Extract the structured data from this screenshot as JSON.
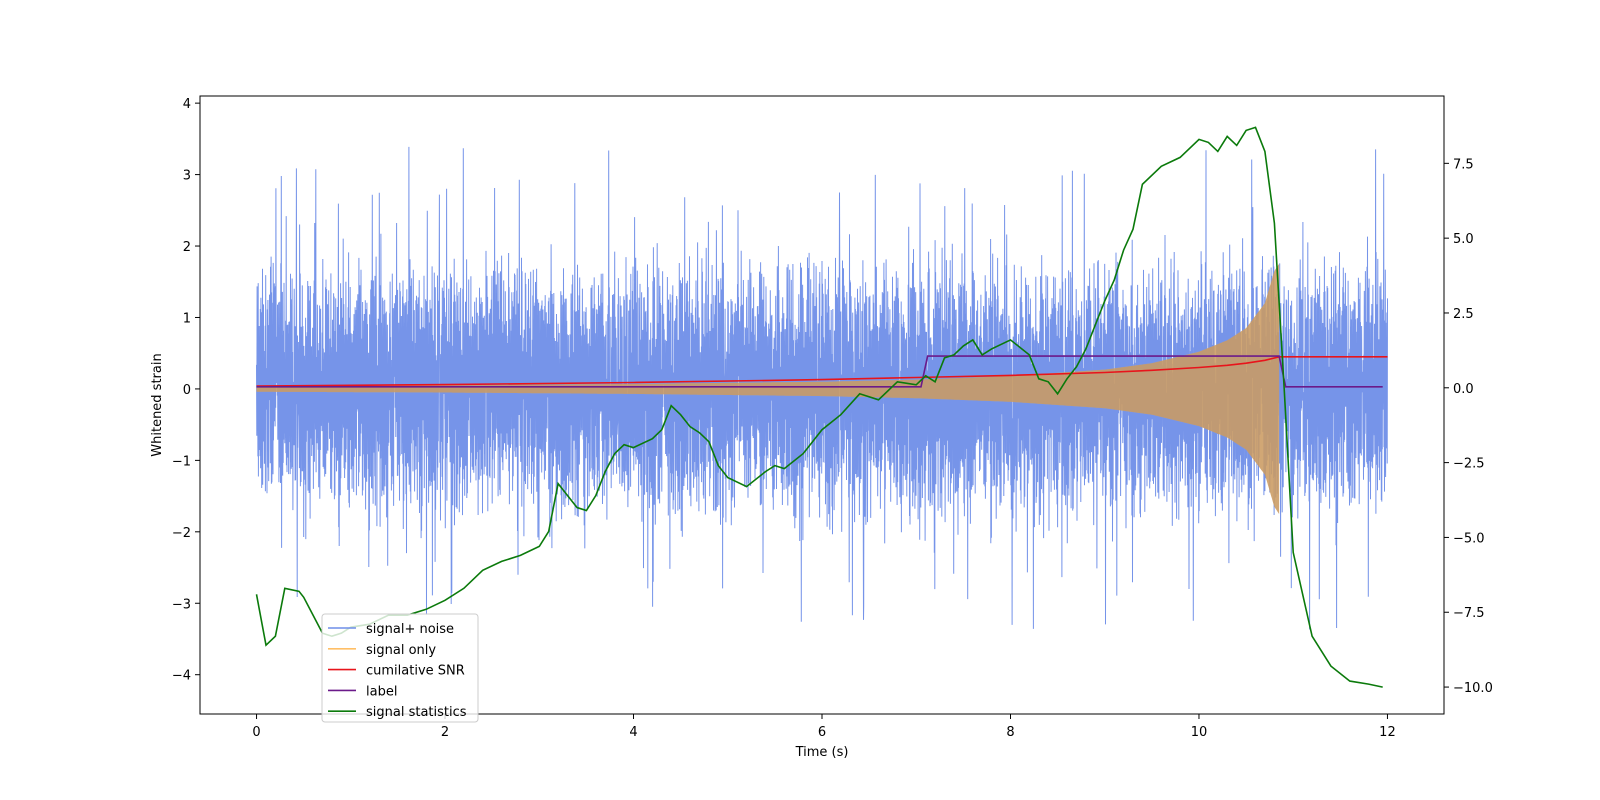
{
  "chart_data": {
    "type": "line",
    "xlabel": "Time (s)",
    "ylabel": "Whitened strain",
    "xlim": [
      -0.6,
      12.6
    ],
    "ylim": [
      -4.55,
      4.1
    ],
    "y2lim": [
      -10.9,
      9.75
    ],
    "x_ticks": [
      0,
      2,
      4,
      6,
      8,
      10,
      12
    ],
    "x_tick_labels": [
      "0",
      "2",
      "4",
      "6",
      "8",
      "10",
      "12"
    ],
    "y_ticks": [
      -4,
      -3,
      -2,
      -1,
      0,
      1,
      2,
      3,
      4
    ],
    "y_tick_labels": [
      "−4",
      "−3",
      "−2",
      "−1",
      "0",
      "1",
      "2",
      "3",
      "4"
    ],
    "y2_ticks": [
      -10,
      -7.5,
      -5,
      -2.5,
      0,
      2.5,
      5,
      7.5
    ],
    "y2_tick_labels": [
      "−10.0",
      "−7.5",
      "−5.0",
      "−2.5",
      "0.0",
      "2.5",
      "5.0",
      "7.5"
    ],
    "grid": false,
    "legend_position": "lower-left",
    "series": [
      {
        "name": "signal+ noise",
        "axis": "left",
        "color": "#6f8ee8",
        "style": "noise",
        "t_range": [
          0,
          12
        ],
        "typical_amplitude": 1.5,
        "peak_max": 3.7,
        "peak_min": -4.15
      },
      {
        "name": "signal only",
        "axis": "left",
        "color": "#ffbf66",
        "style": "chirp-envelope",
        "t_range": [
          0,
          10.85
        ],
        "envelope_t": [
          0,
          2,
          4,
          6,
          7,
          8,
          9,
          9.5,
          10,
          10.3,
          10.5,
          10.7,
          10.8,
          10.85
        ],
        "envelope_amp": [
          0.04,
          0.05,
          0.07,
          0.1,
          0.13,
          0.18,
          0.27,
          0.36,
          0.52,
          0.68,
          0.85,
          1.2,
          1.65,
          1.75
        ]
      },
      {
        "name": "cumilative SNR",
        "axis": "left",
        "color": "#e8141b",
        "style": "line",
        "x": [
          0,
          2,
          4,
          6,
          7,
          8,
          9,
          9.5,
          10,
          10.3,
          10.5,
          10.7,
          10.85,
          11,
          12
        ],
        "y": [
          0.04,
          0.06,
          0.09,
          0.13,
          0.16,
          0.19,
          0.23,
          0.26,
          0.3,
          0.33,
          0.36,
          0.4,
          0.45,
          0.45,
          0.45
        ]
      },
      {
        "name": "label",
        "axis": "left",
        "color": "#6b1a8a",
        "style": "line",
        "x": [
          0,
          7.05,
          7.12,
          10.85,
          10.92,
          11.95
        ],
        "y": [
          0.03,
          0.03,
          0.46,
          0.46,
          0.03,
          0.03
        ]
      },
      {
        "name": "signal statistics",
        "axis": "right",
        "color": "#0b7a0b",
        "style": "line",
        "x": [
          0,
          0.1,
          0.2,
          0.3,
          0.45,
          0.5,
          0.6,
          0.7,
          0.8,
          0.9,
          1.0,
          1.2,
          1.4,
          1.6,
          1.8,
          2.0,
          2.2,
          2.4,
          2.6,
          2.8,
          3.0,
          3.1,
          3.2,
          3.3,
          3.4,
          3.5,
          3.6,
          3.7,
          3.8,
          3.9,
          4.0,
          4.2,
          4.3,
          4.4,
          4.5,
          4.6,
          4.7,
          4.8,
          4.9,
          5.0,
          5.2,
          5.4,
          5.5,
          5.6,
          5.8,
          6.0,
          6.2,
          6.4,
          6.6,
          6.8,
          7.0,
          7.1,
          7.2,
          7.3,
          7.4,
          7.5,
          7.6,
          7.7,
          7.8,
          8.0,
          8.2,
          8.3,
          8.4,
          8.5,
          8.6,
          8.7,
          8.8,
          9.0,
          9.1,
          9.2,
          9.3,
          9.4,
          9.6,
          9.8,
          10.0,
          10.1,
          10.2,
          10.3,
          10.4,
          10.5,
          10.6,
          10.7,
          10.8,
          10.9,
          11.0,
          11.2,
          11.4,
          11.6,
          11.8,
          11.95
        ],
        "y": [
          -6.9,
          -8.6,
          -8.3,
          -6.7,
          -6.8,
          -7.0,
          -7.6,
          -8.2,
          -8.3,
          -8.2,
          -8.0,
          -7.9,
          -7.6,
          -7.6,
          -7.4,
          -7.1,
          -6.7,
          -6.1,
          -5.8,
          -5.6,
          -5.3,
          -4.8,
          -3.2,
          -3.6,
          -4.0,
          -4.1,
          -3.6,
          -2.8,
          -2.2,
          -1.9,
          -2.0,
          -1.7,
          -1.4,
          -0.6,
          -0.9,
          -1.3,
          -1.5,
          -1.8,
          -2.6,
          -3.0,
          -3.3,
          -2.8,
          -2.6,
          -2.7,
          -2.2,
          -1.4,
          -0.9,
          -0.2,
          -0.4,
          0.2,
          0.1,
          0.4,
          0.2,
          1.0,
          1.1,
          1.4,
          1.6,
          1.1,
          1.3,
          1.6,
          1.1,
          0.3,
          0.2,
          -0.2,
          0.3,
          0.7,
          1.3,
          2.9,
          3.6,
          4.6,
          5.3,
          6.8,
          7.4,
          7.7,
          8.3,
          8.2,
          7.9,
          8.4,
          8.1,
          8.6,
          8.7,
          7.9,
          5.5,
          0.2,
          -5.5,
          -8.3,
          -9.3,
          -9.8,
          -9.9,
          -10.0
        ]
      }
    ]
  }
}
